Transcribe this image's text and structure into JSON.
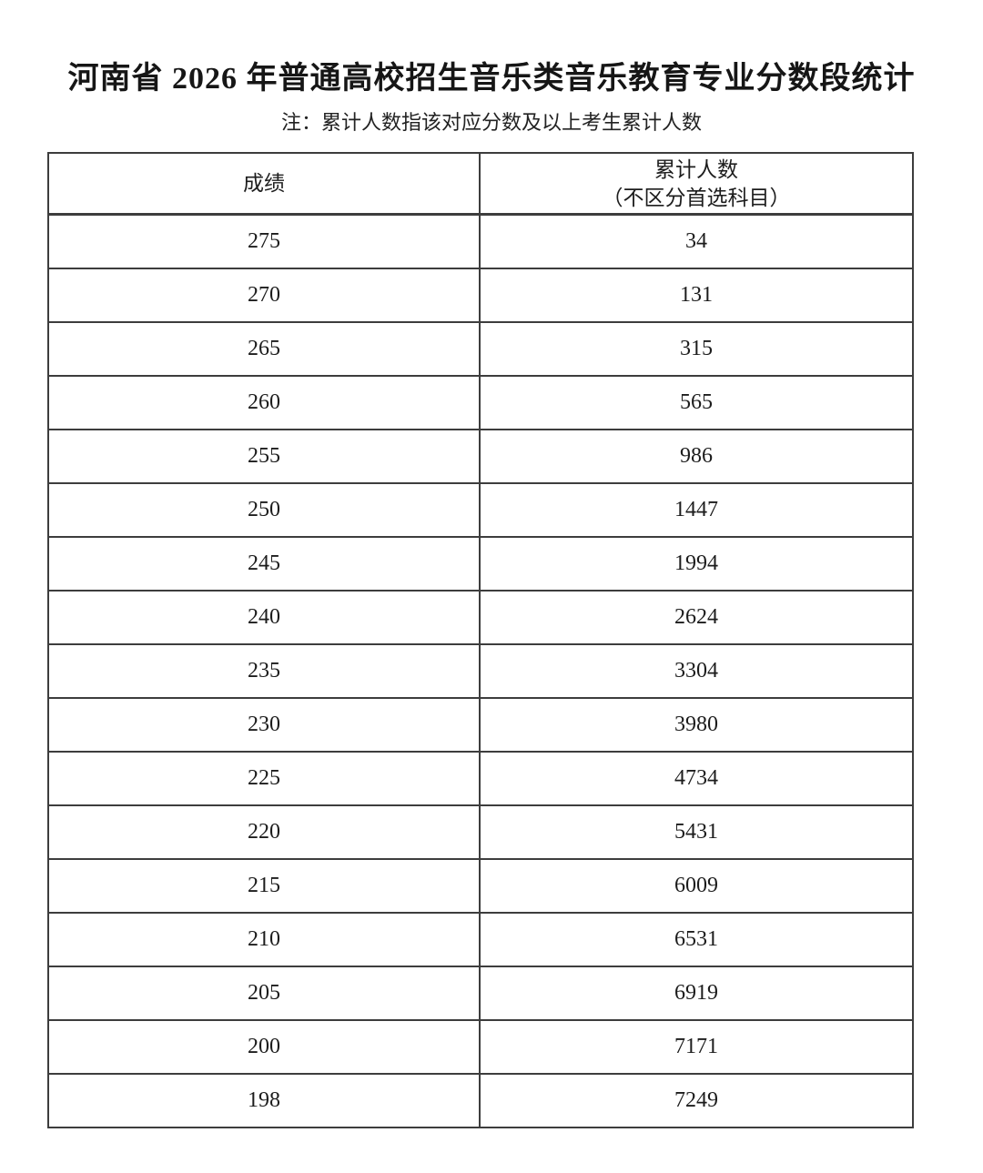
{
  "page": {
    "title": "河南省 2026 年普通高校招生音乐类音乐教育专业分数段统计",
    "note": "注：累计人数指该对应分数及以上考生累计人数"
  },
  "colors": {
    "background": "#ffffff",
    "text": "#1d1d1d",
    "table_border": "#3d3d3d"
  },
  "table": {
    "columns": [
      {
        "label": "成绩"
      },
      {
        "label": "累计人数",
        "sublabel": "（不区分首选科目）"
      }
    ],
    "rows": [
      {
        "score": "275",
        "count": "34"
      },
      {
        "score": "270",
        "count": "131"
      },
      {
        "score": "265",
        "count": "315"
      },
      {
        "score": "260",
        "count": "565"
      },
      {
        "score": "255",
        "count": "986"
      },
      {
        "score": "250",
        "count": "1447"
      },
      {
        "score": "245",
        "count": "1994"
      },
      {
        "score": "240",
        "count": "2624"
      },
      {
        "score": "235",
        "count": "3304"
      },
      {
        "score": "230",
        "count": "3980"
      },
      {
        "score": "225",
        "count": "4734"
      },
      {
        "score": "220",
        "count": "5431"
      },
      {
        "score": "215",
        "count": "6009"
      },
      {
        "score": "210",
        "count": "6531"
      },
      {
        "score": "205",
        "count": "6919"
      },
      {
        "score": "200",
        "count": "7171"
      },
      {
        "score": "198",
        "count": "7249"
      }
    ]
  }
}
